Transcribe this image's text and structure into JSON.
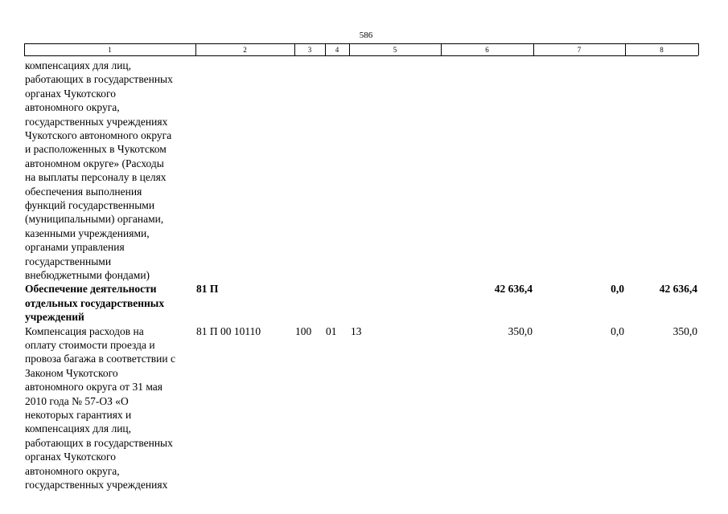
{
  "page_number": "586",
  "table": {
    "columns": [
      "1",
      "2",
      "3",
      "4",
      "5",
      "6",
      "7",
      "8"
    ],
    "rows": [
      {
        "name_lines": [
          "компенсациях для лиц,",
          "работающих в государственных",
          "органах Чукотского",
          "автономного округа,",
          "государственных учреждениях",
          "Чукотского автономного округа",
          "и расположенных в Чукотском",
          "автономном округе» (Расходы",
          "на выплаты персоналу в целях",
          "обеспечения выполнения",
          "функций государственными",
          "(муниципальными) органами,",
          "казенными учреждениями,",
          "органами управления",
          "государственными",
          "внебюджетными фондами)"
        ]
      },
      {
        "bold": true,
        "name_lines": [
          "Обеспечение деятельности",
          "отдельных государственных",
          "учреждений"
        ],
        "code": "81 П",
        "amount": "42 636,4",
        "change": "0,0",
        "total": "42 636,4"
      },
      {
        "name_lines": [
          "Компенсация расходов на",
          "оплату стоимости проезда и",
          "провоза багажа в соответствии с",
          "Законом Чукотского",
          "автономного округа от 31 мая",
          "2010 года № 57-ОЗ «О",
          "некоторых гарантиях и",
          "компенсациях для лиц,",
          "работающих в государственных",
          "органах Чукотского",
          "автономного округа,",
          "государственных учреждениях"
        ],
        "code": "81 П 00 10110",
        "vr": "100",
        "rz": "01",
        "pr": "13",
        "amount": "350,0",
        "change": "0,0",
        "total": "350,0"
      }
    ]
  }
}
